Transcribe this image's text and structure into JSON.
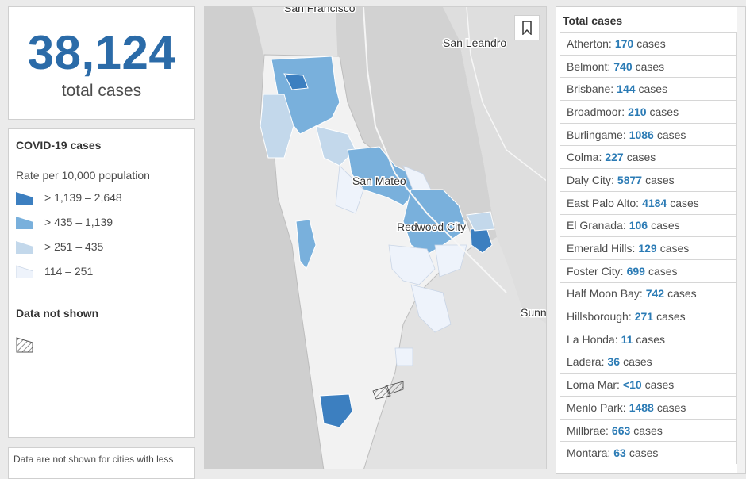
{
  "total": {
    "value": "38,124",
    "label": "total cases"
  },
  "legend": {
    "title": "COVID-19 cases",
    "subtitle": "Rate per 10,000 population",
    "classes": [
      {
        "label": "> 1,139 – 2,648",
        "color": "#3c7fc0"
      },
      {
        "label": "> 435 – 1,139",
        "color": "#79b0dc"
      },
      {
        "label": "> 251 – 435",
        "color": "#c3d8eb"
      },
      {
        "label": "114 – 251",
        "color": "#eef3fb"
      }
    ],
    "no_data_title": "Data not shown",
    "footnote": "Data are not shown for cities with less"
  },
  "map": {
    "labels": {
      "san_francisco": "San Francisco",
      "san_leandro": "San Leandro",
      "san_mateo": "San Mateo",
      "redwood_city": "Redwood City",
      "sunnyvale": "Sunn"
    }
  },
  "list": {
    "title": "Total cases",
    "unit": "cases",
    "cities": [
      {
        "name": "Atherton:",
        "count": "170"
      },
      {
        "name": "Belmont:",
        "count": "740"
      },
      {
        "name": "Brisbane:",
        "count": "144"
      },
      {
        "name": "Broadmoor:",
        "count": "210"
      },
      {
        "name": "Burlingame:",
        "count": "1086"
      },
      {
        "name": "Colma:",
        "count": "227"
      },
      {
        "name": "Daly City:",
        "count": "5877"
      },
      {
        "name": "East Palo Alto:",
        "count": "4184"
      },
      {
        "name": "El Granada:",
        "count": "106"
      },
      {
        "name": "Emerald Hills:",
        "count": "129"
      },
      {
        "name": "Foster City:",
        "count": "699"
      },
      {
        "name": "Half Moon Bay:",
        "count": "742"
      },
      {
        "name": "Hillsborough:",
        "count": "271"
      },
      {
        "name": "La Honda:",
        "count": "11"
      },
      {
        "name": "Ladera:",
        "count": "36"
      },
      {
        "name": "Loma Mar:",
        "count": "<10"
      },
      {
        "name": "Menlo Park:",
        "count": "1488"
      },
      {
        "name": "Millbrae:",
        "count": "663"
      },
      {
        "name": "Montara:",
        "count": "63"
      }
    ]
  }
}
